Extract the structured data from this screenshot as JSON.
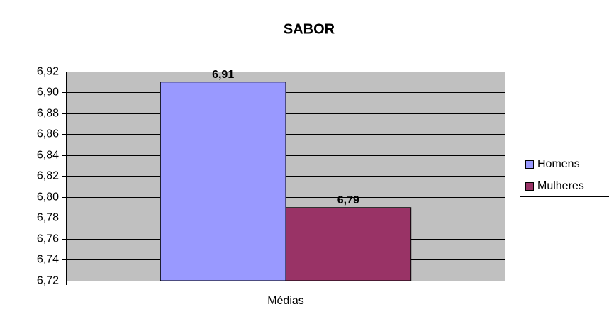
{
  "chart_data": {
    "type": "bar",
    "title": "SABOR",
    "categories": [
      "Médias"
    ],
    "series": [
      {
        "name": "Homens",
        "color": "#9999ff",
        "values": [
          6.91
        ],
        "value_labels": [
          "6,91"
        ]
      },
      {
        "name": "Mulheres",
        "color": "#993366",
        "values": [
          6.79
        ],
        "value_labels": [
          "6,79"
        ]
      }
    ],
    "ylim": [
      6.72,
      6.92
    ],
    "yticks": [
      {
        "value": 6.72,
        "label": "6,72"
      },
      {
        "value": 6.74,
        "label": "6,74"
      },
      {
        "value": 6.76,
        "label": "6,76"
      },
      {
        "value": 6.78,
        "label": "6,78"
      },
      {
        "value": 6.8,
        "label": "6,80"
      },
      {
        "value": 6.82,
        "label": "6,82"
      },
      {
        "value": 6.84,
        "label": "6,84"
      },
      {
        "value": 6.86,
        "label": "6,86"
      },
      {
        "value": 6.88,
        "label": "6,88"
      },
      {
        "value": 6.9,
        "label": "6,90"
      },
      {
        "value": 6.92,
        "label": "6,92"
      }
    ],
    "grid": true,
    "legend": "right"
  }
}
